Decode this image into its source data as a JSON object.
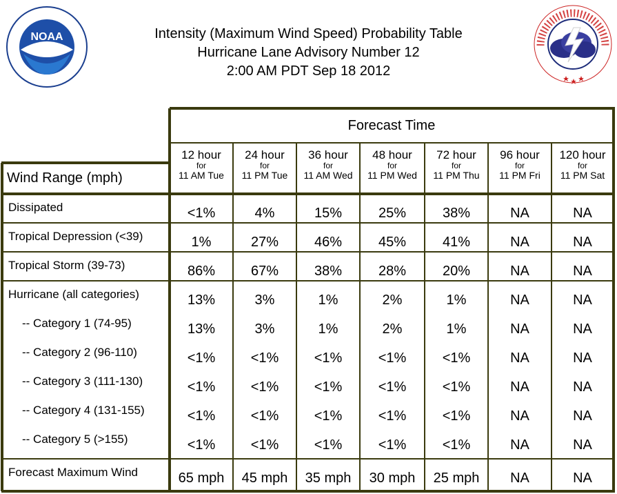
{
  "title": {
    "line1": "Intensity (Maximum Wind Speed) Probability Table",
    "line2": "Hurricane Lane Advisory Number 12",
    "line3": "2:00 AM PDT Sep 18 2012"
  },
  "logos": {
    "noaa_text": "NOAA",
    "noaa_ring": "NATIONAL OCEANIC AND ATMOSPHERIC ADMINISTRATION • U.S. DEPARTMENT OF COMMERCE",
    "nws_ring": "NATIONAL WEATHER SERVICE"
  },
  "table": {
    "forecast_time_label": "Forecast Time",
    "wind_range_label": "Wind Range (mph)",
    "for_label": "for",
    "columns": [
      {
        "hours": "12 hour",
        "when": "11 AM Tue"
      },
      {
        "hours": "24 hour",
        "when": "11 PM Tue"
      },
      {
        "hours": "36 hour",
        "when": "11 AM Wed"
      },
      {
        "hours": "48 hour",
        "when": "11 PM Wed"
      },
      {
        "hours": "72 hour",
        "when": "11 PM Thu"
      },
      {
        "hours": "96 hour",
        "when": "11 PM Fri"
      },
      {
        "hours": "120 hour",
        "when": "11 PM Sat"
      }
    ],
    "rows": [
      {
        "label": "Dissipated",
        "values": [
          "<1%",
          "4%",
          "15%",
          "25%",
          "38%",
          "NA",
          "NA"
        ]
      },
      {
        "label": "Tropical Depression (<39)",
        "values": [
          "1%",
          "27%",
          "46%",
          "45%",
          "41%",
          "NA",
          "NA"
        ]
      },
      {
        "label": "Tropical Storm (39-73)",
        "values": [
          "86%",
          "67%",
          "38%",
          "28%",
          "20%",
          "NA",
          "NA"
        ]
      },
      {
        "label": "Hurricane (all categories)",
        "values": [
          "13%",
          "3%",
          "1%",
          "2%",
          "1%",
          "NA",
          "NA"
        ]
      },
      {
        "label": "-- Category 1 (74-95)",
        "values": [
          "13%",
          "3%",
          "1%",
          "2%",
          "1%",
          "NA",
          "NA"
        ]
      },
      {
        "label": "-- Category 2 (96-110)",
        "values": [
          "<1%",
          "<1%",
          "<1%",
          "<1%",
          "<1%",
          "NA",
          "NA"
        ]
      },
      {
        "label": "-- Category 3 (111-130)",
        "values": [
          "<1%",
          "<1%",
          "<1%",
          "<1%",
          "<1%",
          "NA",
          "NA"
        ]
      },
      {
        "label": "-- Category 4 (131-155)",
        "values": [
          "<1%",
          "<1%",
          "<1%",
          "<1%",
          "<1%",
          "NA",
          "NA"
        ]
      },
      {
        "label": "-- Category 5 (>155)",
        "values": [
          "<1%",
          "<1%",
          "<1%",
          "<1%",
          "<1%",
          "NA",
          "NA"
        ]
      },
      {
        "label": "Forecast Maximum Wind",
        "values": [
          "65 mph",
          "45 mph",
          "35 mph",
          "30 mph",
          "25 mph",
          "NA",
          "NA"
        ]
      }
    ]
  }
}
